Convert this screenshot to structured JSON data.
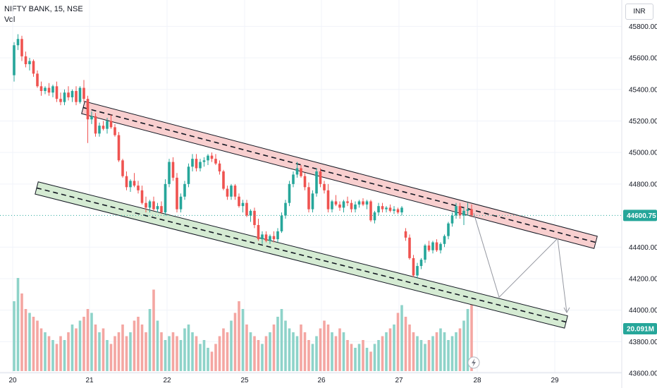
{
  "header": {
    "symbol": "NIFTY BANK, 15, NSE",
    "volume_label": "Vol"
  },
  "currency": "INR",
  "colors": {
    "up": "#26a69a",
    "down": "#ef5350",
    "vol_up": "#8ed3c9",
    "vol_down": "#f4a6a2",
    "last_price_bg": "#26a69a",
    "channel_upper_fill": "#f8cfcf",
    "channel_lower_fill": "#d5ebd3"
  },
  "chart_data": {
    "type": "candlestick",
    "x_ticks": [
      "20",
      "21",
      "22",
      "25",
      "26",
      "27",
      "28",
      "29"
    ],
    "y_ticks": [
      45800,
      45600,
      45400,
      45200,
      45000,
      44800,
      44400,
      44200,
      44000,
      43800,
      43600
    ],
    "ylim": [
      43560,
      45900
    ],
    "last_price": "44600.75",
    "last_volume": "20.091M",
    "grid": true,
    "candles": [
      [
        45490,
        45700,
        45450,
        45680
      ],
      [
        45680,
        45750,
        45650,
        45720
      ],
      [
        45720,
        45740,
        45580,
        45610
      ],
      [
        45610,
        45640,
        45540,
        45560
      ],
      [
        45560,
        45600,
        45520,
        45580
      ],
      [
        45580,
        45590,
        45480,
        45500
      ],
      [
        45500,
        45520,
        45410,
        45420
      ],
      [
        45420,
        45450,
        45360,
        45390
      ],
      [
        45390,
        45420,
        45370,
        45410
      ],
      [
        45410,
        45440,
        45360,
        45380
      ],
      [
        45380,
        45430,
        45350,
        45420
      ],
      [
        45420,
        45450,
        45320,
        45340
      ],
      [
        45340,
        45380,
        45300,
        45320
      ],
      [
        45320,
        45400,
        45300,
        45380
      ],
      [
        45380,
        45420,
        45330,
        45350
      ],
      [
        45350,
        45400,
        45320,
        45390
      ],
      [
        45390,
        45420,
        45300,
        45320
      ],
      [
        45320,
        45420,
        45310,
        45410
      ],
      [
        45410,
        45460,
        45320,
        45340
      ],
      [
        45340,
        45360,
        45060,
        45210
      ],
      [
        45210,
        45260,
        45180,
        45230
      ],
      [
        45230,
        45250,
        45100,
        45120
      ],
      [
        45120,
        45190,
        45100,
        45170
      ],
      [
        45170,
        45200,
        45140,
        45150
      ],
      [
        45150,
        45220,
        45120,
        45200
      ],
      [
        45200,
        45240,
        45150,
        45160
      ],
      [
        45160,
        45180,
        45100,
        45110
      ],
      [
        45110,
        45130,
        44940,
        44950
      ],
      [
        44950,
        44960,
        44840,
        44850
      ],
      [
        44850,
        44880,
        44760,
        44780
      ],
      [
        44780,
        44830,
        44750,
        44820
      ],
      [
        44820,
        44870,
        44780,
        44790
      ],
      [
        44790,
        44820,
        44740,
        44760
      ],
      [
        44760,
        44790,
        44670,
        44680
      ],
      [
        44680,
        44720,
        44620,
        44650
      ],
      [
        44650,
        44700,
        44620,
        44690
      ],
      [
        44690,
        44720,
        44630,
        44640
      ],
      [
        44640,
        44680,
        44620,
        44660
      ],
      [
        44660,
        44690,
        44610,
        44620
      ],
      [
        44620,
        44830,
        44600,
        44800
      ],
      [
        44800,
        44960,
        44780,
        44940
      ],
      [
        44940,
        44970,
        44820,
        44840
      ],
      [
        44840,
        44870,
        44620,
        44640
      ],
      [
        44640,
        44740,
        44620,
        44720
      ],
      [
        44720,
        44820,
        44700,
        44800
      ],
      [
        44800,
        44930,
        44780,
        44910
      ],
      [
        44910,
        44990,
        44880,
        44960
      ],
      [
        44960,
        44990,
        44880,
        44900
      ],
      [
        44900,
        44960,
        44880,
        44940
      ],
      [
        44940,
        44970,
        44910,
        44950
      ],
      [
        44950,
        44990,
        44920,
        44980
      ],
      [
        44980,
        45000,
        44940,
        44960
      ],
      [
        44960,
        44990,
        44920,
        44930
      ],
      [
        44930,
        44950,
        44860,
        44880
      ],
      [
        44880,
        44890,
        44760,
        44770
      ],
      [
        44770,
        44790,
        44700,
        44720
      ],
      [
        44720,
        44800,
        44700,
        44790
      ],
      [
        44790,
        44800,
        44700,
        44720
      ],
      [
        44720,
        44740,
        44650,
        44660
      ],
      [
        44660,
        44700,
        44620,
        44680
      ],
      [
        44680,
        44700,
        44590,
        44600
      ],
      [
        44600,
        44640,
        44560,
        44630
      ],
      [
        44630,
        44650,
        44520,
        44540
      ],
      [
        44540,
        44580,
        44440,
        44450
      ],
      [
        44450,
        44500,
        44420,
        44480
      ],
      [
        44480,
        44500,
        44430,
        44440
      ],
      [
        44440,
        44480,
        44420,
        44470
      ],
      [
        44470,
        44500,
        44430,
        44450
      ],
      [
        44450,
        44520,
        44430,
        44500
      ],
      [
        44500,
        44620,
        44490,
        44600
      ],
      [
        44600,
        44700,
        44580,
        44680
      ],
      [
        44680,
        44820,
        44660,
        44800
      ],
      [
        44800,
        44880,
        44780,
        44860
      ],
      [
        44860,
        44940,
        44840,
        44900
      ],
      [
        44900,
        44920,
        44840,
        44850
      ],
      [
        44850,
        44870,
        44760,
        44780
      ],
      [
        44780,
        44810,
        44620,
        44640
      ],
      [
        44640,
        44760,
        44620,
        44740
      ],
      [
        44740,
        44900,
        44720,
        44880
      ],
      [
        44880,
        44900,
        44780,
        44800
      ],
      [
        44800,
        44820,
        44740,
        44760
      ],
      [
        44760,
        44800,
        44620,
        44640
      ],
      [
        44640,
        44700,
        44620,
        44690
      ],
      [
        44690,
        44730,
        44660,
        44670
      ],
      [
        44670,
        44690,
        44630,
        44650
      ],
      [
        44650,
        44700,
        44620,
        44690
      ],
      [
        44690,
        44720,
        44660,
        44680
      ],
      [
        44680,
        44700,
        44620,
        44640
      ],
      [
        44640,
        44690,
        44620,
        44670
      ],
      [
        44670,
        44700,
        44650,
        44690
      ],
      [
        44690,
        44710,
        44660,
        44670
      ],
      [
        44670,
        44700,
        44640,
        44690
      ],
      [
        44690,
        44700,
        44560,
        44570
      ],
      [
        44570,
        44630,
        44550,
        44620
      ],
      [
        44620,
        44680,
        44600,
        44660
      ],
      [
        44660,
        44680,
        44620,
        44640
      ],
      [
        44640,
        44660,
        44620,
        44650
      ],
      [
        44650,
        44670,
        44620,
        44630
      ],
      [
        44630,
        44660,
        44610,
        44640
      ],
      [
        44640,
        44650,
        44610,
        44620
      ],
      [
        44620,
        44660,
        44600,
        44650
      ],
      [
        44500,
        44520,
        44440,
        44460
      ],
      [
        44460,
        44480,
        44320,
        44330
      ],
      [
        44330,
        44350,
        44210,
        44220
      ],
      [
        44220,
        44300,
        44200,
        44280
      ],
      [
        44280,
        44330,
        44260,
        44320
      ],
      [
        44320,
        44420,
        44300,
        44410
      ],
      [
        44410,
        44440,
        44370,
        44380
      ],
      [
        44380,
        44440,
        44360,
        44430
      ],
      [
        44430,
        44450,
        44370,
        44380
      ],
      [
        44380,
        44430,
        44360,
        44420
      ],
      [
        44420,
        44480,
        44400,
        44470
      ],
      [
        44470,
        44560,
        44450,
        44550
      ],
      [
        44550,
        44620,
        44530,
        44600
      ],
      [
        44600,
        44680,
        44580,
        44660
      ],
      [
        44660,
        44680,
        44580,
        44600
      ],
      [
        44600,
        44650,
        44540,
        44630
      ],
      [
        44630,
        44680,
        44600,
        44640
      ],
      [
        44640,
        44670,
        44590,
        44600
      ]
    ],
    "volumes": [
      1.8,
      2.4,
      2.0,
      1.6,
      1.5,
      1.4,
      1.3,
      1.1,
      1.0,
      0.9,
      0.8,
      0.7,
      0.9,
      0.8,
      1.0,
      1.2,
      1.1,
      1.3,
      1.4,
      1.6,
      1.5,
      1.2,
      1.0,
      1.1,
      0.8,
      0.7,
      0.9,
      1.0,
      1.2,
      0.9,
      1.0,
      1.3,
      1.4,
      1.2,
      1.0,
      1.6,
      2.1,
      1.3,
      1.0,
      0.8,
      0.9,
      1.0,
      0.9,
      0.8,
      1.1,
      1.2,
      1.0,
      0.9,
      0.7,
      0.8,
      0.6,
      0.5,
      0.7,
      0.9,
      1.1,
      1.0,
      1.3,
      1.5,
      1.8,
      1.6,
      1.2,
      1.0,
      0.9,
      0.8,
      0.7,
      0.9,
      1.0,
      1.2,
      1.4,
      1.6,
      1.3,
      1.1,
      1.0,
      0.9,
      1.2,
      1.0,
      0.8,
      0.7,
      0.9,
      1.1,
      1.3,
      1.2,
      1.0,
      0.9,
      1.1,
      1.0,
      0.8,
      0.7,
      0.6,
      0.7,
      0.8,
      0.6,
      0.5,
      0.7,
      0.8,
      0.9,
      1.0,
      1.1,
      1.2,
      1.5,
      1.7,
      1.4,
      1.2,
      1.0,
      0.9,
      0.8,
      0.7,
      0.8,
      0.9,
      1.0,
      1.1,
      1.0,
      0.8,
      0.9,
      1.0,
      1.1,
      1.3,
      1.6,
      2.0
    ],
    "drawings": {
      "upper_channel": {
        "x_start": 118,
        "x_end": 845,
        "price_start": 45285,
        "price_end": 44430
      },
      "lower_channel": {
        "x_start": 52,
        "x_end": 803,
        "price_start": 44775,
        "price_end": 43925
      },
      "projection_path": [
        [
          672,
          44615
        ],
        [
          708,
          44082
        ],
        [
          791,
          44455
        ],
        [
          804,
          43985
        ]
      ]
    }
  }
}
